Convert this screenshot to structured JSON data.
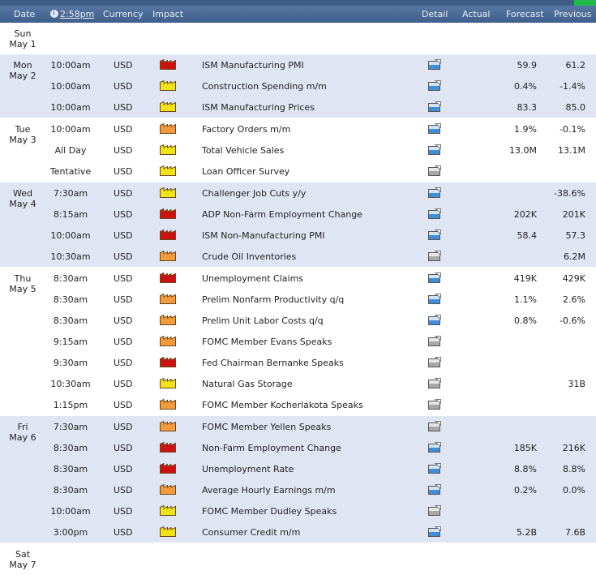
{
  "header": {
    "date": "Date",
    "time": "2:58pm",
    "currency": "Currency",
    "impact": "Impact",
    "detail": "Detail",
    "actual": "Actual",
    "forecast": "Forecast",
    "previous": "Previous"
  },
  "colors": {
    "high": "#cc1111",
    "medium": "#f39a3c",
    "low": "#f2e21a"
  },
  "days": [
    {
      "day": "Sun",
      "date": "May 1",
      "shaded": false,
      "events": []
    },
    {
      "day": "Mon",
      "date": "May 2",
      "shaded": true,
      "events": [
        {
          "time": "10:00am",
          "currency": "USD",
          "impact": "high",
          "name": "ISM Manufacturing PMI",
          "detail": "blue",
          "forecast": "59.9",
          "previous": "61.2"
        },
        {
          "time": "10:00am",
          "currency": "USD",
          "impact": "low",
          "name": "Construction Spending m/m",
          "detail": "blue",
          "forecast": "0.4%",
          "previous": "-1.4%"
        },
        {
          "time": "10:00am",
          "currency": "USD",
          "impact": "low",
          "name": "ISM Manufacturing Prices",
          "detail": "blue",
          "forecast": "83.3",
          "previous": "85.0"
        }
      ]
    },
    {
      "day": "Tue",
      "date": "May 3",
      "shaded": false,
      "events": [
        {
          "time": "10:00am",
          "currency": "USD",
          "impact": "medium",
          "name": "Factory Orders m/m",
          "detail": "blue",
          "forecast": "1.9%",
          "previous": "-0.1%"
        },
        {
          "time": "All Day",
          "currency": "USD",
          "impact": "low",
          "name": "Total Vehicle Sales",
          "detail": "blue",
          "forecast": "13.0M",
          "previous": "13.1M"
        },
        {
          "time": "Tentative",
          "currency": "USD",
          "impact": "low",
          "name": "Loan Officer Survey",
          "detail": "gray",
          "forecast": "",
          "previous": ""
        }
      ]
    },
    {
      "day": "Wed",
      "date": "May 4",
      "shaded": true,
      "events": [
        {
          "time": "7:30am",
          "currency": "USD",
          "impact": "low",
          "name": "Challenger Job Cuts y/y",
          "detail": "blue",
          "forecast": "",
          "previous": "-38.6%"
        },
        {
          "time": "8:15am",
          "currency": "USD",
          "impact": "high",
          "name": "ADP Non-Farm Employment Change",
          "detail": "blue",
          "forecast": "202K",
          "previous": "201K"
        },
        {
          "time": "10:00am",
          "currency": "USD",
          "impact": "high",
          "name": "ISM Non-Manufacturing PMI",
          "detail": "blue",
          "forecast": "58.4",
          "previous": "57.3"
        },
        {
          "time": "10:30am",
          "currency": "USD",
          "impact": "medium",
          "name": "Crude Oil Inventories",
          "detail": "gray",
          "forecast": "",
          "previous": "6.2M"
        }
      ]
    },
    {
      "day": "Thu",
      "date": "May 5",
      "shaded": false,
      "events": [
        {
          "time": "8:30am",
          "currency": "USD",
          "impact": "high",
          "name": "Unemployment Claims",
          "detail": "blue",
          "forecast": "419K",
          "previous": "429K"
        },
        {
          "time": "8:30am",
          "currency": "USD",
          "impact": "medium",
          "name": "Prelim Nonfarm Productivity q/q",
          "detail": "blue",
          "forecast": "1.1%",
          "previous": "2.6%"
        },
        {
          "time": "8:30am",
          "currency": "USD",
          "impact": "medium",
          "name": "Prelim Unit Labor Costs q/q",
          "detail": "blue",
          "forecast": "0.8%",
          "previous": "-0.6%"
        },
        {
          "time": "9:15am",
          "currency": "USD",
          "impact": "medium",
          "name": "FOMC Member Evans Speaks",
          "detail": "gray",
          "forecast": "",
          "previous": ""
        },
        {
          "time": "9:30am",
          "currency": "USD",
          "impact": "high",
          "name": "Fed Chairman Bernanke Speaks",
          "detail": "gray",
          "forecast": "",
          "previous": ""
        },
        {
          "time": "10:30am",
          "currency": "USD",
          "impact": "low",
          "name": "Natural Gas Storage",
          "detail": "gray",
          "forecast": "",
          "previous": "31B"
        },
        {
          "time": "1:15pm",
          "currency": "USD",
          "impact": "medium",
          "name": "FOMC Member Kocherlakota Speaks",
          "detail": "gray",
          "forecast": "",
          "previous": ""
        }
      ]
    },
    {
      "day": "Fri",
      "date": "May 6",
      "shaded": true,
      "events": [
        {
          "time": "7:30am",
          "currency": "USD",
          "impact": "medium",
          "name": "FOMC Member Yellen Speaks",
          "detail": "gray",
          "forecast": "",
          "previous": ""
        },
        {
          "time": "8:30am",
          "currency": "USD",
          "impact": "high",
          "name": "Non-Farm Employment Change",
          "detail": "blue",
          "forecast": "185K",
          "previous": "216K"
        },
        {
          "time": "8:30am",
          "currency": "USD",
          "impact": "high",
          "name": "Unemployment Rate",
          "detail": "blue",
          "forecast": "8.8%",
          "previous": "8.8%"
        },
        {
          "time": "8:30am",
          "currency": "USD",
          "impact": "medium",
          "name": "Average Hourly Earnings m/m",
          "detail": "blue",
          "forecast": "0.2%",
          "previous": "0.0%"
        },
        {
          "time": "10:00am",
          "currency": "USD",
          "impact": "low",
          "name": "FOMC Member Dudley Speaks",
          "detail": "gray",
          "forecast": "",
          "previous": ""
        },
        {
          "time": "3:00pm",
          "currency": "USD",
          "impact": "low",
          "name": "Consumer Credit m/m",
          "detail": "blue",
          "forecast": "5.2B",
          "previous": "7.6B"
        }
      ]
    },
    {
      "day": "Sat",
      "date": "May 7",
      "shaded": false,
      "events": []
    }
  ]
}
